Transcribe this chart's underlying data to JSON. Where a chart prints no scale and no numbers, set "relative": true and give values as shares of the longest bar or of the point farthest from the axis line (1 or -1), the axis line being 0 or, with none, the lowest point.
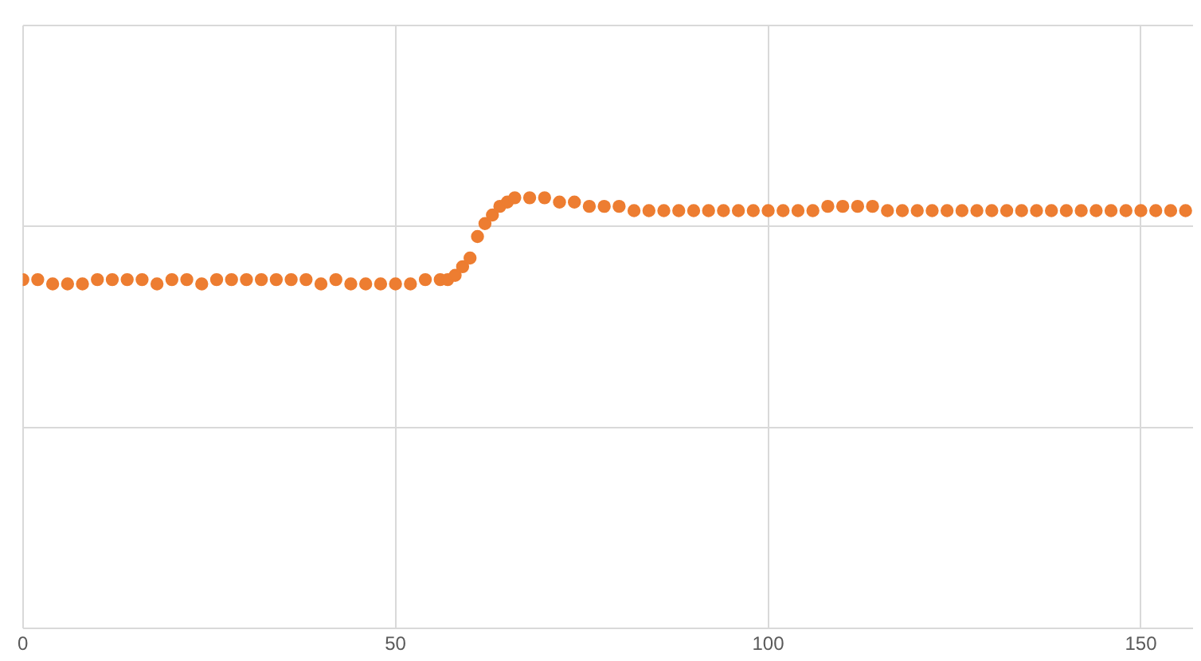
{
  "chart_data": {
    "type": "scatter",
    "relative": true,
    "x": [
      0,
      2,
      4,
      6,
      8,
      10,
      12,
      14,
      16,
      18,
      20,
      22,
      24,
      26,
      28,
      30,
      32,
      34,
      36,
      38,
      40,
      42,
      44,
      46,
      48,
      50,
      52,
      54,
      56,
      57,
      58,
      59,
      60,
      61,
      62,
      63,
      64,
      65,
      66,
      68,
      70,
      72,
      74,
      76,
      78,
      80,
      82,
      84,
      86,
      88,
      90,
      92,
      94,
      96,
      98,
      100,
      102,
      104,
      106,
      108,
      110,
      112,
      114,
      116,
      118,
      120,
      122,
      124,
      126,
      128,
      130,
      132,
      134,
      136,
      138,
      140,
      142,
      144,
      146,
      148,
      150,
      152,
      154,
      156
    ],
    "series": [
      {
        "color": "#ed7d31",
        "values": [
          0.81,
          0.81,
          0.8,
          0.8,
          0.8,
          0.81,
          0.81,
          0.81,
          0.81,
          0.8,
          0.81,
          0.81,
          0.8,
          0.81,
          0.81,
          0.81,
          0.81,
          0.81,
          0.81,
          0.81,
          0.8,
          0.81,
          0.8,
          0.8,
          0.8,
          0.8,
          0.8,
          0.81,
          0.81,
          0.81,
          0.82,
          0.84,
          0.86,
          0.91,
          0.94,
          0.96,
          0.98,
          0.99,
          1,
          1,
          1,
          0.99,
          0.99,
          0.98,
          0.98,
          0.98,
          0.97,
          0.97,
          0.97,
          0.97,
          0.97,
          0.97,
          0.97,
          0.97,
          0.97,
          0.97,
          0.97,
          0.97,
          0.97,
          0.98,
          0.98,
          0.98,
          0.98,
          0.97,
          0.97,
          0.97,
          0.97,
          0.97,
          0.97,
          0.97,
          0.97,
          0.97,
          0.97,
          0.97,
          0.97,
          0.97,
          0.97,
          0.97,
          0.97,
          0.97,
          0.97,
          0.97,
          0.97,
          0.97
        ]
      }
    ],
    "xlim": [
      0,
      157
    ],
    "xticks": [
      0,
      50,
      100,
      150
    ],
    "grid": true,
    "tick_labels": "x",
    "marker": "circle",
    "legend": false
  }
}
